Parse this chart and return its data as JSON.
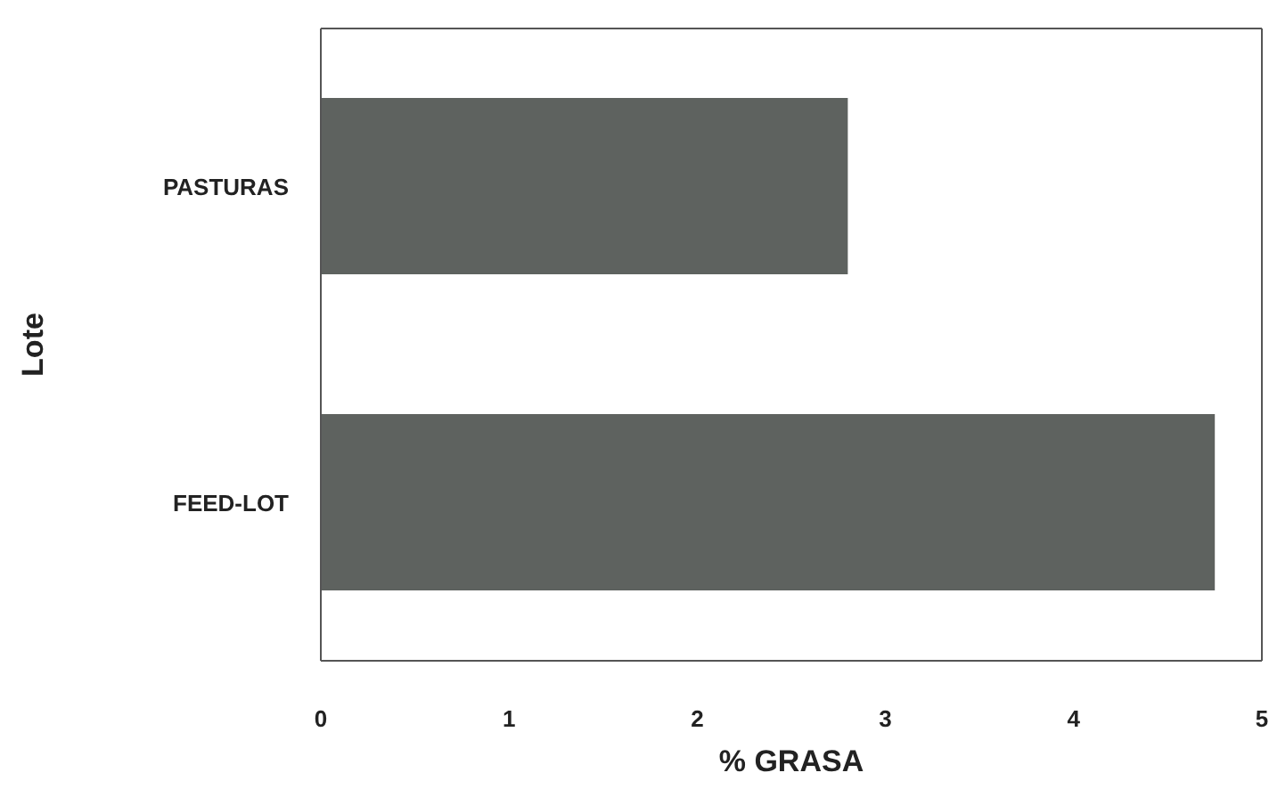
{
  "chart_data": {
    "type": "bar",
    "orientation": "horizontal",
    "xlabel": "% GRASA",
    "ylabel": "Lote",
    "categories": [
      "PASTURAS",
      "FEED-LOT"
    ],
    "values": [
      2.8,
      4.75
    ],
    "color": "#5e625f",
    "xlim": [
      0,
      5
    ],
    "xticks": [
      0,
      1,
      2,
      3,
      4,
      5
    ]
  }
}
